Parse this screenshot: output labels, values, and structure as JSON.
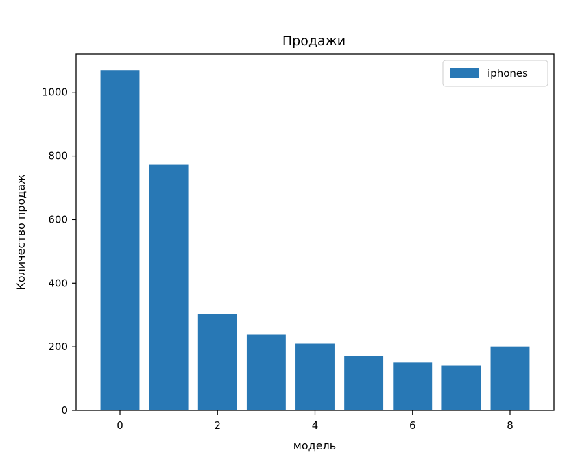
{
  "chart_data": {
    "type": "bar",
    "title": "Продажи",
    "xlabel": "модель",
    "ylabel": "Количество продаж",
    "x": [
      0,
      1,
      2,
      3,
      4,
      5,
      6,
      7,
      8
    ],
    "series": [
      {
        "name": "iphones",
        "values": [
          1070,
          772,
          302,
          238,
          210,
          171,
          150,
          141,
          201
        ],
        "color": "#2878b5"
      }
    ],
    "xlim": [
      -0.9,
      8.9
    ],
    "ylim": [
      0,
      1120
    ],
    "xticks": [
      0,
      2,
      4,
      6,
      8
    ],
    "xtick_labels": [
      "0",
      "2",
      "4",
      "6",
      "8"
    ],
    "yticks": [
      0,
      200,
      400,
      600,
      800,
      1000
    ],
    "ytick_labels": [
      "0",
      "200",
      "400",
      "600",
      "800",
      "1000"
    ],
    "grid": false,
    "legend": "top-right"
  }
}
